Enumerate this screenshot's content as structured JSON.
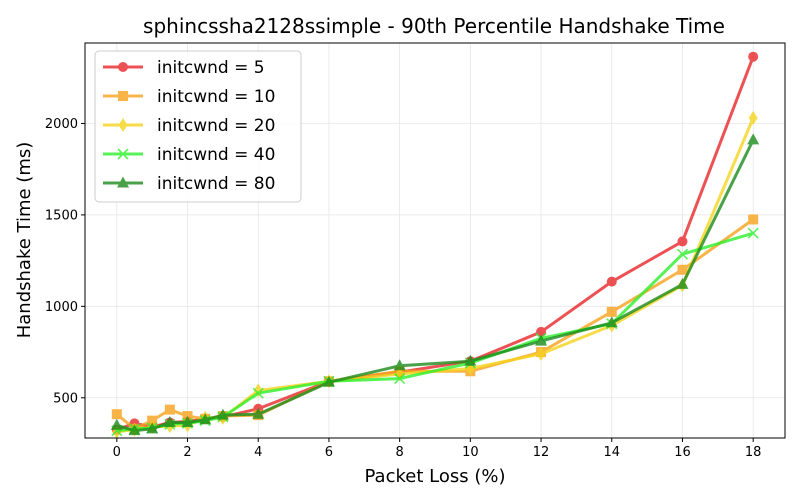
{
  "chart_data": {
    "type": "line",
    "title": "sphincssha2128ssimple - 90th Percentile Handshake Time",
    "xlabel": "Packet Loss (%)",
    "ylabel": "Handshake Time (ms)",
    "xlim": [
      -0.9,
      18.9
    ],
    "ylim": [
      280,
      2440
    ],
    "xticks": [
      0,
      2,
      4,
      6,
      8,
      10,
      12,
      14,
      16,
      18
    ],
    "yticks": [
      500,
      1000,
      1500,
      2000
    ],
    "grid": true,
    "legend_position": "upper-left",
    "x": [
      0,
      0.5,
      1,
      1.5,
      2,
      2.5,
      3,
      4,
      6,
      8,
      10,
      12,
      14,
      16,
      18
    ],
    "series": [
      {
        "name": "initcwnd = 5",
        "color": "#e8262a",
        "marker": "circle",
        "values": [
          325,
          360,
          340,
          365,
          370,
          385,
          395,
          440,
          590,
          640,
          700,
          860,
          1135,
          1355,
          2365
        ]
      },
      {
        "name": "initcwnd = 10",
        "color": "#f7a21b",
        "marker": "square",
        "values": [
          410,
          330,
          375,
          435,
          400,
          385,
          400,
          405,
          590,
          645,
          645,
          750,
          970,
          1200,
          1475
        ]
      },
      {
        "name": "initcwnd = 20",
        "color": "#f5d41c",
        "marker": "diamond",
        "values": [
          315,
          325,
          340,
          345,
          350,
          390,
          390,
          540,
          590,
          630,
          660,
          740,
          895,
          1115,
          2030
        ]
      },
      {
        "name": "initcwnd = 40",
        "color": "#2df02d",
        "marker": "x",
        "values": [
          320,
          330,
          335,
          355,
          360,
          375,
          395,
          525,
          590,
          605,
          690,
          825,
          905,
          1285,
          1400
        ]
      },
      {
        "name": "initcwnd = 80",
        "color": "#1c8c1c",
        "marker": "triangle",
        "values": [
          350,
          320,
          330,
          365,
          365,
          380,
          405,
          410,
          585,
          675,
          700,
          810,
          910,
          1120,
          1910
        ]
      }
    ]
  }
}
